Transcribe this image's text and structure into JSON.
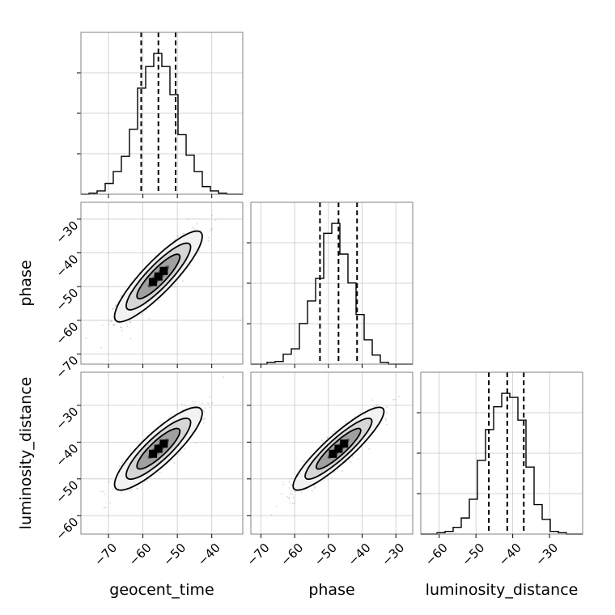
{
  "chart_data": {
    "type": "corner",
    "parameters": [
      "geocent_time",
      "phase",
      "luminosity_distance"
    ],
    "axis_labels": {
      "x": [
        "geocent_time",
        "phase",
        "luminosity_distance"
      ],
      "y": [
        "",
        "phase",
        "luminosity_distance"
      ]
    },
    "ticks": {
      "geocent_time": [
        -70,
        -60,
        -50,
        -40
      ],
      "phase": [
        -70,
        -60,
        -50,
        -40,
        -30
      ],
      "luminosity_distance": [
        -60,
        -50,
        -40,
        -30
      ]
    },
    "tick_labels": {
      "geocent_time": [
        "−70",
        "−60",
        "−50",
        "−40"
      ],
      "phase": [
        "−70",
        "−60",
        "−50",
        "−40",
        "−30"
      ],
      "luminosity_distance": [
        "−60",
        "−50",
        "−40",
        "−30"
      ]
    },
    "ranges": {
      "geocent_time": [
        -78,
        -31
      ],
      "phase": [
        -73,
        -25
      ],
      "luminosity_distance": [
        -65,
        -21
      ]
    },
    "histograms": [
      {
        "parameter": "geocent_time",
        "quantiles": [
          -60.5,
          -55.5,
          -50.5
        ],
        "edges": [
          -78,
          -75.65,
          -73.3,
          -70.95,
          -68.6,
          -66.25,
          -63.9,
          -61.55,
          -59.2,
          -56.85,
          -54.5,
          -52.15,
          -49.8,
          -47.45,
          -45.1,
          -42.75,
          -40.4,
          -38.05,
          -35.7,
          -33.35,
          -31
        ],
        "counts": [
          0,
          1,
          3,
          10,
          21,
          35,
          60,
          98,
          118,
          130,
          118,
          92,
          55,
          36,
          21,
          7,
          3,
          1,
          0,
          0
        ]
      },
      {
        "parameter": "phase",
        "quantiles": [
          -52.5,
          -47,
          -41.5
        ],
        "edges": [
          -73,
          -70.6,
          -68.2,
          -65.8,
          -63.4,
          -61,
          -58.6,
          -56.2,
          -53.8,
          -51.4,
          -49,
          -46.6,
          -44.2,
          -41.8,
          -39.4,
          -37,
          -34.6,
          -32.2,
          -29.8,
          -27.4,
          -25
        ],
        "counts": [
          0,
          0,
          2,
          3,
          11,
          17,
          45,
          70,
          95,
          145,
          156,
          122,
          90,
          55,
          27,
          10,
          2,
          0,
          0,
          0
        ]
      },
      {
        "parameter": "luminosity_distance",
        "quantiles": [
          -46.5,
          -41.5,
          -37
        ],
        "edges": [
          -65,
          -62.8,
          -60.6,
          -58.4,
          -56.2,
          -54,
          -51.8,
          -49.6,
          -47.4,
          -45.2,
          -43,
          -40.8,
          -38.6,
          -36.4,
          -34.2,
          -32,
          -29.8,
          -27.6,
          -25.4,
          -23.2,
          -21
        ],
        "counts": [
          0,
          0,
          1,
          2,
          5,
          12,
          26,
          55,
          78,
          95,
          105,
          102,
          85,
          50,
          22,
          11,
          2,
          1,
          0,
          0
        ]
      }
    ],
    "pairs": [
      {
        "x": "geocent_time",
        "y": "phase",
        "mean": [
          -55.5,
          -47
        ],
        "sd": [
          5.2,
          5.5
        ],
        "rho": 0.88
      },
      {
        "x": "geocent_time",
        "y": "luminosity_distance",
        "mean": [
          -55.5,
          -41.8
        ],
        "sd": [
          5.2,
          4.6
        ],
        "rho": 0.86
      },
      {
        "x": "phase",
        "y": "luminosity_distance",
        "mean": [
          -47,
          -41.8
        ],
        "sd": [
          5.5,
          4.6
        ],
        "rho": 0.9
      }
    ],
    "grid": true
  }
}
